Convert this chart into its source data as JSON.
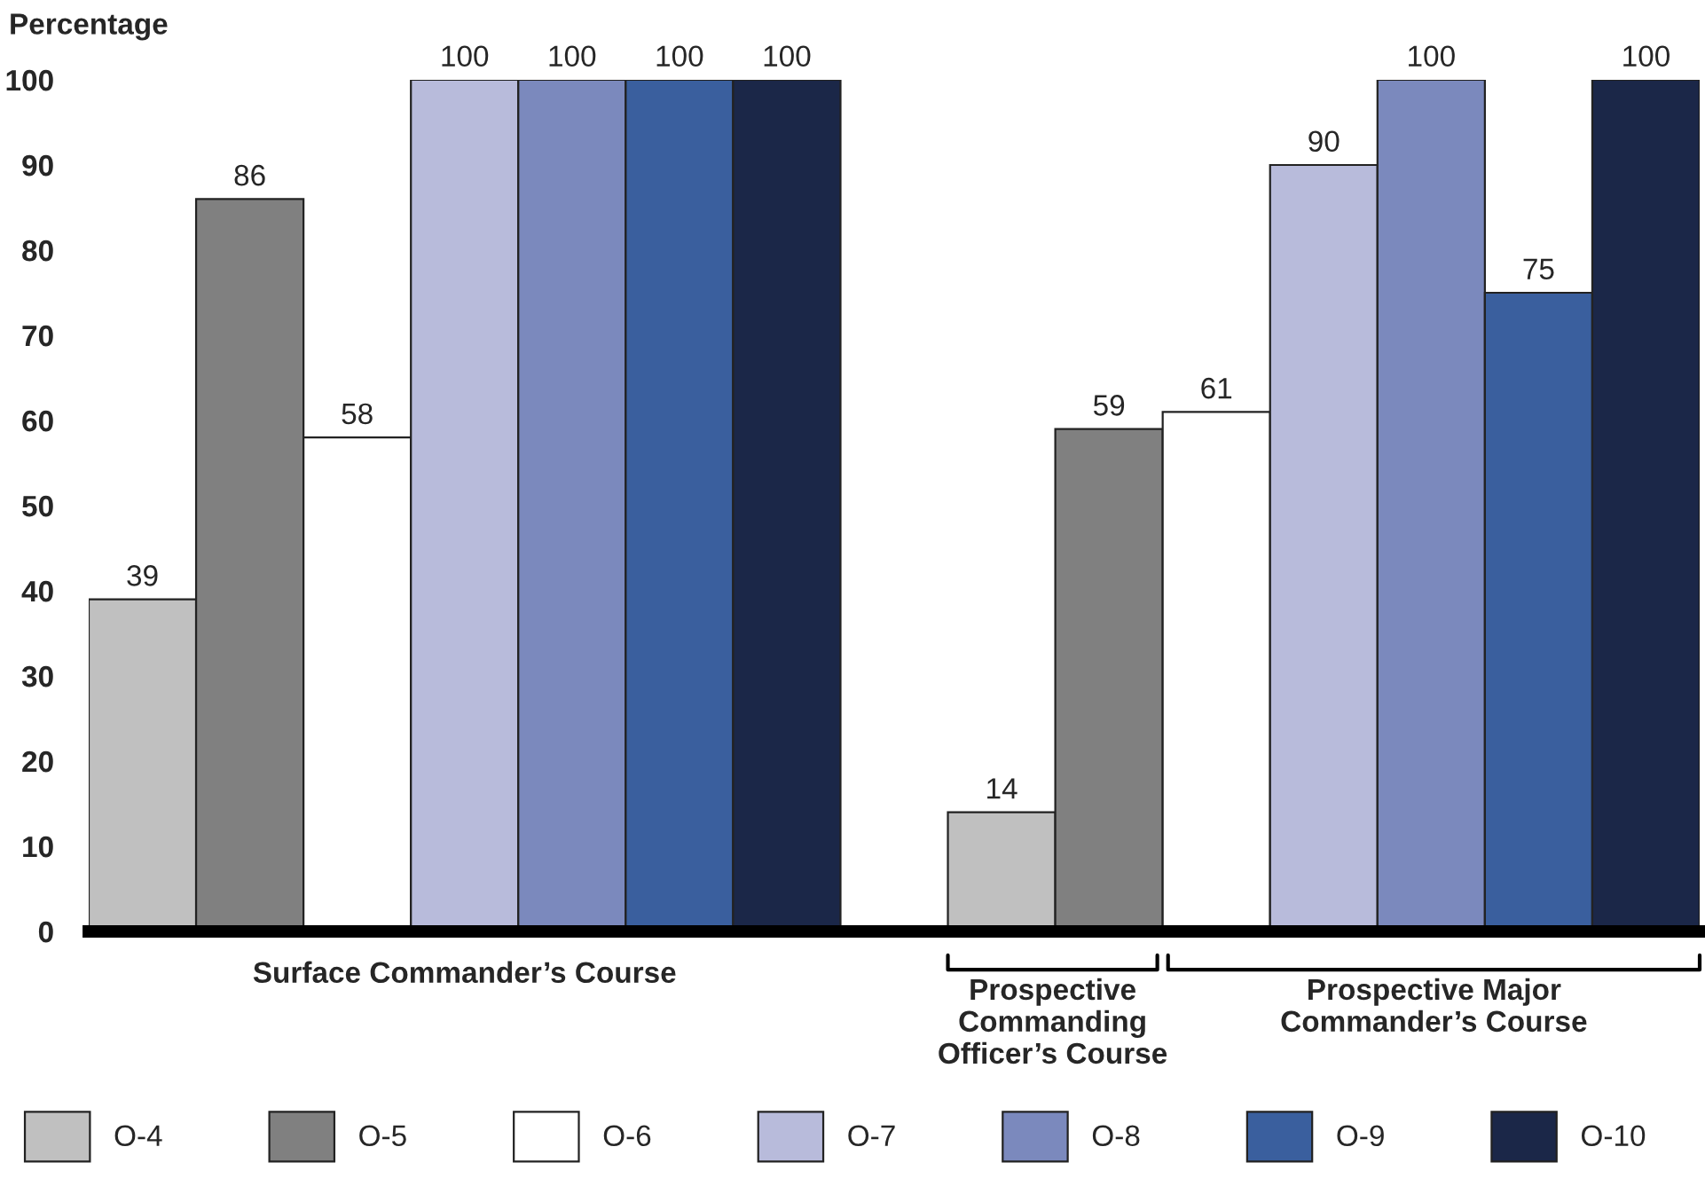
{
  "chart_data": {
    "type": "bar",
    "ylabel": "Percentage",
    "categories": [
      null,
      null,
      null,
      null,
      null,
      null,
      null,
      null,
      null,
      null,
      null,
      null,
      null,
      null,
      null
    ],
    "series": [
      {
        "name": "O-4",
        "color": "#c0c0c0",
        "values": [
          39,
          null,
          null,
          null,
          null,
          null,
          null,
          null,
          14,
          null,
          null,
          null,
          null,
          null,
          null
        ]
      },
      {
        "name": "O-5",
        "color": "#808080",
        "values": [
          null,
          86,
          null,
          null,
          null,
          null,
          null,
          null,
          null,
          59,
          null,
          null,
          null,
          null,
          null
        ]
      },
      {
        "name": "O-6",
        "color": "#ffffff",
        "values": [
          null,
          null,
          58,
          null,
          null,
          null,
          null,
          null,
          null,
          null,
          61,
          null,
          null,
          null,
          null
        ]
      },
      {
        "name": "O-7",
        "color": "#b8bbdb",
        "values": [
          null,
          null,
          null,
          100,
          null,
          null,
          null,
          null,
          null,
          null,
          null,
          90,
          null,
          null,
          null
        ]
      },
      {
        "name": "O-8",
        "color": "#7b89bd",
        "values": [
          null,
          null,
          null,
          null,
          100,
          null,
          null,
          null,
          null,
          null,
          null,
          null,
          100,
          null,
          null
        ]
      },
      {
        "name": "O-9",
        "color": "#3a5f9e",
        "values": [
          null,
          null,
          null,
          null,
          null,
          100,
          null,
          null,
          null,
          null,
          null,
          null,
          null,
          75,
          null
        ]
      },
      {
        "name": "O-10",
        "color": "#1b2748",
        "values": [
          null,
          null,
          null,
          null,
          null,
          null,
          100,
          null,
          null,
          null,
          null,
          null,
          null,
          null,
          100
        ]
      }
    ],
    "ylim": [
      0,
      100
    ],
    "yticks": [
      0,
      10,
      20,
      30,
      40,
      50,
      60,
      70,
      80,
      90,
      100
    ],
    "data_labels": true,
    "legend": "bottom",
    "grid": false,
    "annotations": [
      "Surface Commander’s Course",
      "Prospective\nCommanding\nOfficer’s Course",
      "Prospective Major\nCommander’s Course"
    ]
  }
}
